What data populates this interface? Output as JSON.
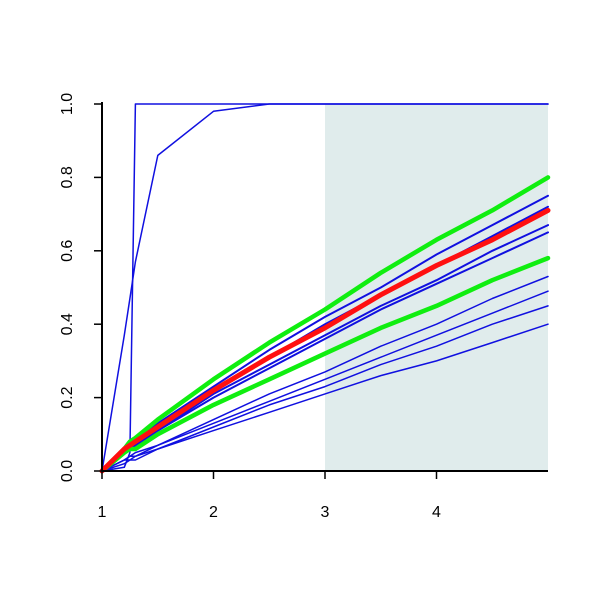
{
  "chart_data": {
    "type": "line",
    "x": [
      1,
      1.2,
      1.25,
      1.3,
      1.5,
      2,
      2.5,
      3,
      3.5,
      4,
      4.5,
      5
    ],
    "xlim": [
      1,
      5
    ],
    "xticks": [
      1,
      2,
      3,
      4
    ],
    "ylim": [
      0,
      1
    ],
    "yticks": [
      {
        "value": 0,
        "label": "0.0"
      },
      0.2,
      0.4,
      0.6,
      0.8,
      {
        "value": 1,
        "label": "1.0"
      }
    ],
    "shaded_region": [
      3,
      5
    ],
    "shade_color": "#e0ecec",
    "series": [
      {
        "color": "#1010e0",
        "line_width": 1.5,
        "values": [
          0,
          0.01,
          0.05,
          1,
          1,
          1,
          1,
          1,
          1,
          1,
          1,
          1
        ]
      },
      {
        "color": "#1010e0",
        "line_width": 1.5,
        "values": [
          0,
          0.37,
          0.47,
          0.57,
          0.86,
          0.98,
          1,
          1,
          1,
          1,
          1,
          1
        ]
      },
      {
        "color": "#1010e0",
        "line_width": 2,
        "values": [
          0,
          0.06,
          0.07,
          0.08,
          0.13,
          0.23,
          0.33,
          0.42,
          0.5,
          0.59,
          0.67,
          0.75
        ]
      },
      {
        "color": "#1010e0",
        "line_width": 2,
        "values": [
          0,
          0.06,
          0.07,
          0.08,
          0.12,
          0.22,
          0.31,
          0.4,
          0.48,
          0.56,
          0.64,
          0.72
        ]
      },
      {
        "color": "#1010e0",
        "line_width": 2,
        "values": [
          0,
          0.05,
          0.06,
          0.07,
          0.11,
          0.21,
          0.29,
          0.37,
          0.45,
          0.52,
          0.6,
          0.67
        ]
      },
      {
        "color": "#1010e0",
        "line_width": 2,
        "values": [
          0,
          0.05,
          0.06,
          0.07,
          0.11,
          0.2,
          0.28,
          0.36,
          0.44,
          0.51,
          0.58,
          0.65
        ]
      },
      {
        "color": "#1010e0",
        "line_width": 1.5,
        "values": [
          0,
          0.03,
          0.04,
          0.05,
          0.07,
          0.14,
          0.21,
          0.27,
          0.34,
          0.4,
          0.47,
          0.53
        ]
      },
      {
        "color": "#1010e0",
        "line_width": 1.5,
        "values": [
          0,
          0.03,
          0.04,
          0.04,
          0.07,
          0.13,
          0.19,
          0.25,
          0.31,
          0.37,
          0.43,
          0.49
        ]
      },
      {
        "color": "#1010e0",
        "line_width": 1.5,
        "values": [
          0,
          0.03,
          0.03,
          0.04,
          0.06,
          0.12,
          0.18,
          0.23,
          0.29,
          0.34,
          0.4,
          0.45
        ]
      },
      {
        "color": "#1010e0",
        "line_width": 1.5,
        "values": [
          0,
          0.02,
          0.03,
          0.03,
          0.06,
          0.11,
          0.16,
          0.21,
          0.26,
          0.3,
          0.35,
          0.4
        ]
      },
      {
        "color": "#10ee10",
        "line_width": 4.5,
        "values": [
          0,
          0.06,
          0.08,
          0.09,
          0.14,
          0.25,
          0.35,
          0.44,
          0.54,
          0.63,
          0.71,
          0.8
        ]
      },
      {
        "color": "#10ee10",
        "line_width": 4.5,
        "values": [
          0,
          0.05,
          0.06,
          0.06,
          0.1,
          0.18,
          0.25,
          0.32,
          0.39,
          0.45,
          0.52,
          0.58
        ]
      },
      {
        "color": "#ff1010",
        "line_width": 5,
        "values": [
          0,
          0.06,
          0.07,
          0.08,
          0.12,
          0.22,
          0.31,
          0.39,
          0.48,
          0.56,
          0.63,
          0.71
        ]
      }
    ]
  }
}
